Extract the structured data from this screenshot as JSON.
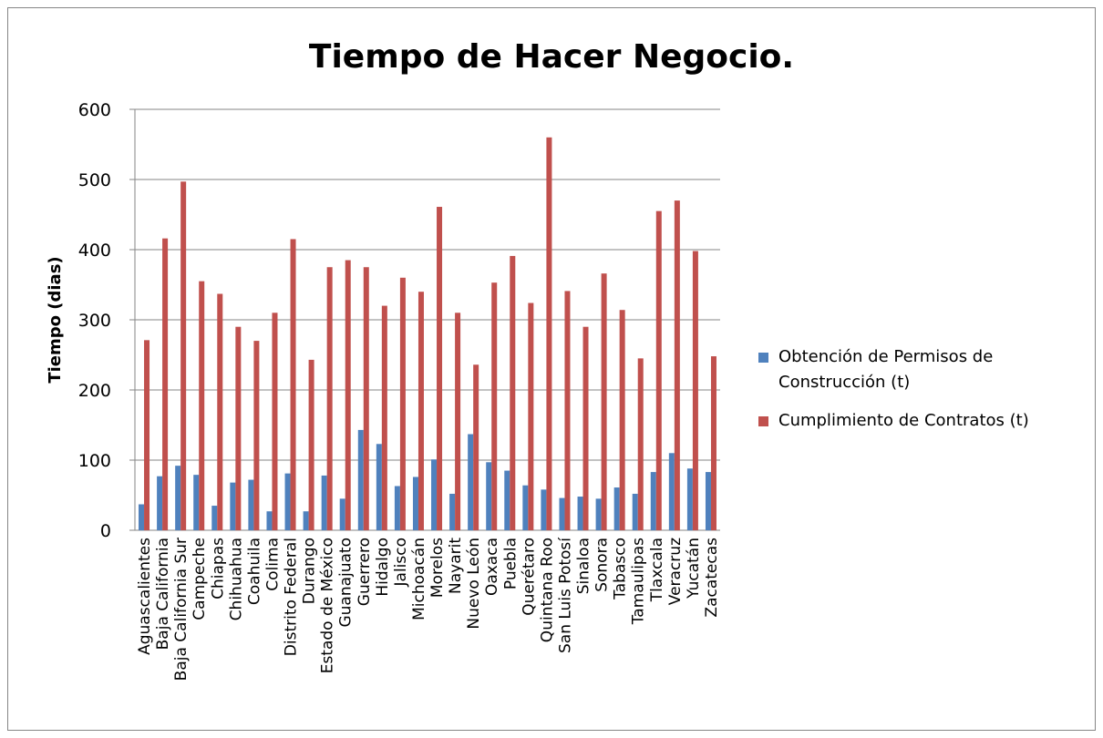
{
  "chart_data": {
    "type": "bar",
    "title": "Tiempo de Hacer Negocio.",
    "y_label": "Tiempo (dias)",
    "categories": [
      "Aguascalientes",
      "Baja California",
      "Baja California Sur",
      "Campeche",
      "Chiapas",
      "Chihuahua",
      "Coahuila",
      "Colima",
      "Distrito Federal",
      "Durango",
      "Estado de México",
      "Guanajuato",
      "Guerrero",
      "Hidalgo",
      "Jalisco",
      "Michoacán",
      "Morelos",
      "Nayarit",
      "Nuevo León",
      "Oaxaca",
      "Puebla",
      "Querétaro",
      "Quintana Roo",
      "San Luis Potosí",
      "Sinaloa",
      "Sonora",
      "Tabasco",
      "Tamaulipas",
      "Tlaxcala",
      "Veracruz",
      "Yucatán",
      "Zacatecas"
    ],
    "series": [
      {
        "name": "Obtención de Permisos de Construcción (t)",
        "color": "#4f81bd",
        "values": [
          37,
          77,
          92,
          79,
          35,
          68,
          72,
          27,
          81,
          27,
          78,
          45,
          143,
          123,
          63,
          76,
          101,
          52,
          137,
          97,
          85,
          64,
          58,
          46,
          48,
          45,
          61,
          52,
          83,
          110,
          88,
          83
        ]
      },
      {
        "name": "Cumplimiento de Contratos (t)",
        "color": "#c0504d",
        "values": [
          271,
          416,
          497,
          355,
          337,
          290,
          270,
          310,
          415,
          243,
          375,
          385,
          375,
          320,
          360,
          340,
          461,
          310,
          236,
          353,
          391,
          324,
          560,
          341,
          290,
          366,
          314,
          245,
          455,
          470,
          398,
          248
        ]
      }
    ],
    "ylim": [
      0,
      600
    ],
    "yticks": [
      0,
      100,
      200,
      300,
      400,
      500,
      600
    ],
    "grid": true,
    "legend": "right"
  }
}
